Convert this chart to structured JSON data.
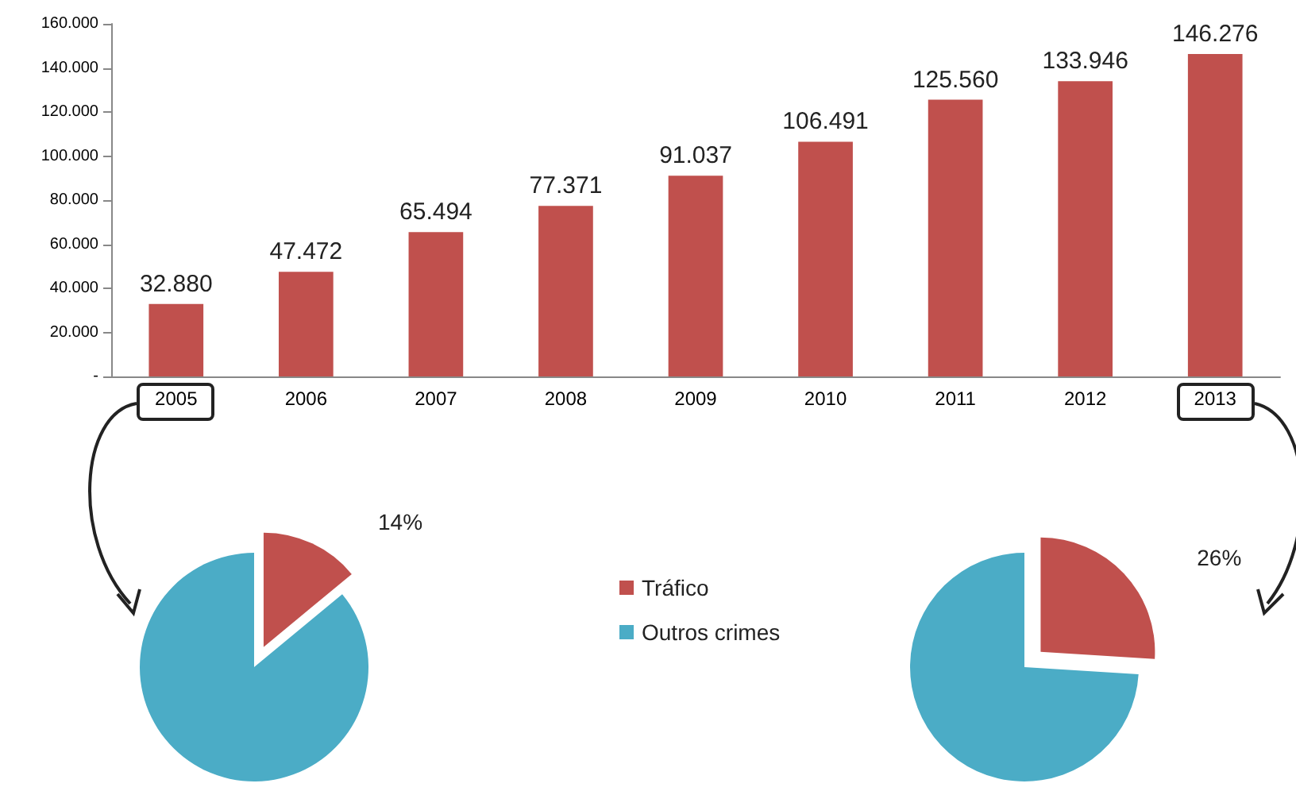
{
  "chart_data": [
    {
      "type": "bar",
      "categories": [
        "2005",
        "2006",
        "2007",
        "2008",
        "2009",
        "2010",
        "2011",
        "2012",
        "2013"
      ],
      "series": [
        {
          "color": "#c0504d",
          "values": [
            32880,
            47472,
            65494,
            77371,
            91037,
            106491,
            125560,
            133946,
            146276
          ],
          "value_labels": [
            "32.880",
            "47.472",
            "65.494",
            "77.371",
            "91.037",
            "106.491",
            "125.560",
            "133.946",
            "146.276"
          ]
        }
      ],
      "ylim": [
        0,
        160000
      ],
      "yticks": [
        {
          "value": 0,
          "label": "-"
        },
        {
          "value": 20000,
          "label": "20.000"
        },
        {
          "value": 40000,
          "label": "40.000"
        },
        {
          "value": 60000,
          "label": "60.000"
        },
        {
          "value": 80000,
          "label": "80.000"
        },
        {
          "value": 100000,
          "label": "100.000"
        },
        {
          "value": 120000,
          "label": "120.000"
        },
        {
          "value": 140000,
          "label": "140.000"
        },
        {
          "value": 160000,
          "label": "160.000"
        }
      ],
      "grid": false
    },
    {
      "type": "pie",
      "categories": [
        "Tráfico",
        "Outros crimes"
      ],
      "colors": [
        "#c0504d",
        "#4bacc6"
      ],
      "legend": "right",
      "series": [
        {
          "values": [
            14,
            86
          ],
          "value_labels": [
            "14%",
            null
          ]
        },
        {
          "values": [
            26,
            74
          ],
          "value_labels": [
            "26%",
            null
          ]
        }
      ]
    }
  ]
}
